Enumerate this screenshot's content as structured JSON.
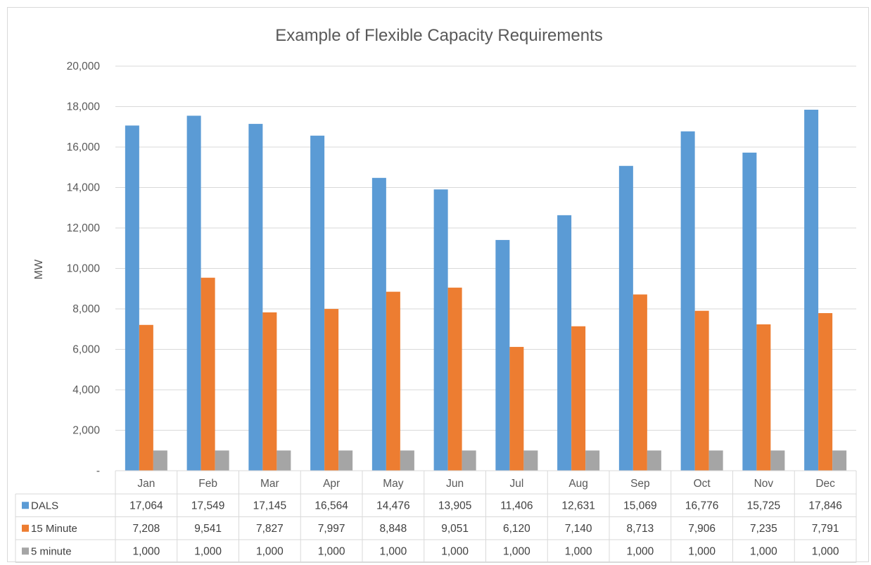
{
  "chart_data": {
    "type": "bar",
    "title": "Example of Flexible Capacity Requirements",
    "xlabel": "",
    "ylabel": "MW",
    "ylim": [
      0,
      20000
    ],
    "yticks": [
      0,
      2000,
      4000,
      6000,
      8000,
      10000,
      12000,
      14000,
      16000,
      18000,
      20000
    ],
    "ytick_labels": [
      "-",
      "2,000",
      "4,000",
      "6,000",
      "8,000",
      "10,000",
      "12,000",
      "14,000",
      "16,000",
      "18,000",
      "20,000"
    ],
    "grid": true,
    "legend": "data-table",
    "categories": [
      "Jan",
      "Feb",
      "Mar",
      "Apr",
      "May",
      "Jun",
      "Jul",
      "Aug",
      "Sep",
      "Oct",
      "Nov",
      "Dec"
    ],
    "series": [
      {
        "name": "DALS",
        "color": "#5b9bd5",
        "values": [
          17064,
          17549,
          17145,
          16564,
          14476,
          13905,
          11406,
          12631,
          15069,
          16776,
          15725,
          17846
        ],
        "labels": [
          "17,064",
          "17,549",
          "17,145",
          "16,564",
          "14,476",
          "13,905",
          "11,406",
          "12,631",
          "15,069",
          "16,776",
          "15,725",
          "17,846"
        ]
      },
      {
        "name": "15 Minute",
        "color": "#ed7d31",
        "values": [
          7208,
          9541,
          7827,
          7997,
          8848,
          9051,
          6120,
          7140,
          8713,
          7906,
          7235,
          7791
        ],
        "labels": [
          "7,208",
          "9,541",
          "7,827",
          "7,997",
          "8,848",
          "9,051",
          "6,120",
          "7,140",
          "8,713",
          "7,906",
          "7,235",
          "7,791"
        ]
      },
      {
        "name": "5 minute",
        "color": "#a5a5a5",
        "values": [
          1000,
          1000,
          1000,
          1000,
          1000,
          1000,
          1000,
          1000,
          1000,
          1000,
          1000,
          1000
        ],
        "labels": [
          "1,000",
          "1,000",
          "1,000",
          "1,000",
          "1,000",
          "1,000",
          "1,000",
          "1,000",
          "1,000",
          "1,000",
          "1,000",
          "1,000"
        ]
      }
    ]
  }
}
